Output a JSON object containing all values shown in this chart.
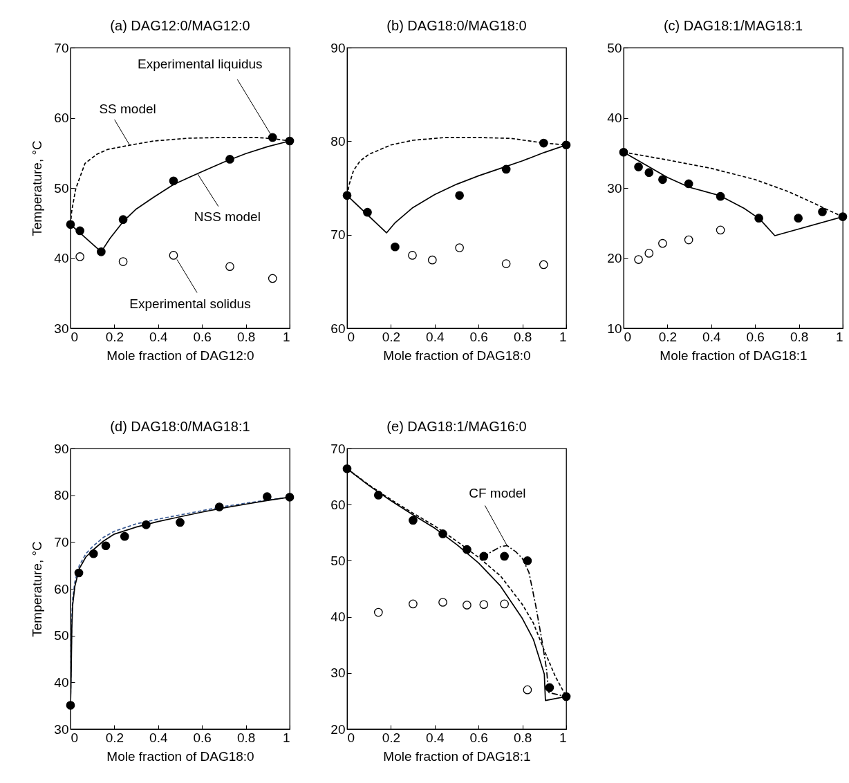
{
  "chart_data": [
    {
      "type": "line",
      "title": "(a) DAG12:0/MAG12:0",
      "xlabel": "Mole fraction of DAG12:0",
      "ylabel": "Temperature, °C",
      "xlim": [
        0,
        1
      ],
      "ylim": [
        30,
        70
      ],
      "xticks": [
        0,
        0.2,
        0.4,
        0.6,
        0.8,
        1
      ],
      "yticks": [
        30,
        40,
        50,
        60,
        70
      ],
      "series": [
        {
          "type": "line",
          "color": "#000000",
          "line_style": "dashed",
          "x": [
            0,
            0.005,
            0.01,
            0.024,
            0.066,
            0.12,
            0.17,
            0.27,
            0.38,
            0.54,
            0.7,
            0.85,
            0.93,
            1
          ],
          "values": [
            44.8,
            46.6,
            47.5,
            49.9,
            53.5,
            54.8,
            55.5,
            56.1,
            56.7,
            57.1,
            57.2,
            57.2,
            57.0,
            56.7
          ]
        },
        {
          "type": "line",
          "color": "#000000",
          "line_style": "solid",
          "x": [
            0,
            0.14,
            0.18,
            0.24,
            0.3,
            0.38,
            0.47,
            0.59,
            0.7,
            0.8,
            0.9,
            1
          ],
          "values": [
            44.8,
            40.9,
            42.8,
            45.2,
            47.0,
            48.7,
            50.5,
            52.2,
            53.7,
            54.9,
            55.9,
            56.7
          ]
        },
        {
          "type": "scatter",
          "color": "#ffffff",
          "marker": "circle",
          "x": [
            0.043,
            0.24,
            0.47,
            0.727,
            0.922
          ],
          "values": [
            40.2,
            39.5,
            40.4,
            38.8,
            37.1
          ]
        },
        {
          "type": "scatter",
          "color": "#000000",
          "marker": "circle",
          "x": [
            0,
            0.043,
            0.14,
            0.24,
            0.47,
            0.727,
            0.922,
            1
          ],
          "values": [
            44.8,
            43.9,
            40.9,
            45.5,
            51.0,
            54.1,
            57.2,
            56.7
          ]
        }
      ],
      "annotations": [
        {
          "text": "Experimental liquidus",
          "x": 0.922,
          "y": 57.2
        },
        {
          "text": "SS model",
          "x": 0.27,
          "y": 56.1
        },
        {
          "text": "NSS model",
          "x": 0.58,
          "y": 52.0
        },
        {
          "text": "Experimental solidus",
          "x": 0.47,
          "y": 40.4
        }
      ]
    },
    {
      "type": "line",
      "title": "(b) DAG18:0/MAG18:0",
      "xlabel": "Mole fraction of DAG18:0",
      "xlim": [
        0,
        1
      ],
      "ylim": [
        60,
        90
      ],
      "xticks": [
        0,
        0.2,
        0.4,
        0.6,
        0.8,
        1
      ],
      "yticks": [
        60,
        70,
        80,
        90
      ],
      "series": [
        {
          "type": "line",
          "color": "#000000",
          "line_style": "dashed",
          "x": [
            0,
            0.01,
            0.03,
            0.06,
            0.1,
            0.2,
            0.3,
            0.45,
            0.6,
            0.75,
            0.9,
            1
          ],
          "values": [
            74.2,
            75.4,
            76.9,
            77.9,
            78.6,
            79.6,
            80.1,
            80.4,
            80.4,
            80.3,
            79.8,
            79.6
          ]
        },
        {
          "type": "line",
          "color": "#000000",
          "line_style": "solid",
          "x": [
            0,
            0.18,
            0.22,
            0.3,
            0.4,
            0.5,
            0.6,
            0.7,
            0.8,
            0.9,
            1
          ],
          "values": [
            74.2,
            70.2,
            71.3,
            72.9,
            74.3,
            75.4,
            76.3,
            77.1,
            77.9,
            78.8,
            79.6
          ]
        },
        {
          "type": "scatter",
          "color": "#ffffff",
          "marker": "circle",
          "x": [
            0.298,
            0.389,
            0.513,
            0.726,
            0.897
          ],
          "values": [
            67.8,
            67.3,
            68.6,
            66.9,
            66.8
          ]
        },
        {
          "type": "scatter",
          "color": "#000000",
          "marker": "circle",
          "x": [
            0,
            0.093,
            0.219,
            0.513,
            0.726,
            0.897,
            1
          ],
          "values": [
            74.2,
            72.4,
            68.7,
            74.2,
            77.0,
            79.8,
            79.6
          ]
        }
      ]
    },
    {
      "type": "line",
      "title": "(c) DAG18:1/MAG18:1",
      "xlabel": "Mole fraction of DAG18:1",
      "xlim": [
        0,
        1
      ],
      "ylim": [
        10,
        50
      ],
      "xticks": [
        0,
        0.2,
        0.4,
        0.6,
        0.8,
        1
      ],
      "yticks": [
        10,
        20,
        30,
        40,
        50
      ],
      "series": [
        {
          "type": "line",
          "color": "#000000",
          "line_style": "dashed",
          "x": [
            0,
            0.2,
            0.4,
            0.6,
            0.75,
            0.85,
            0.93,
            1
          ],
          "values": [
            35.1,
            34.0,
            32.8,
            31.2,
            29.5,
            28.1,
            26.9,
            25.9
          ]
        },
        {
          "type": "line",
          "color": "#000000",
          "line_style": "solid",
          "x": [
            0,
            0.1,
            0.2,
            0.3,
            0.44,
            0.55,
            0.62,
            0.69,
            1
          ],
          "values": [
            35.1,
            33.3,
            31.5,
            30.1,
            28.9,
            27.1,
            25.6,
            23.2,
            25.9
          ]
        },
        {
          "type": "scatter",
          "color": "#ffffff",
          "marker": "circle",
          "x": [
            0.068,
            0.116,
            0.178,
            0.297,
            0.442
          ],
          "values": [
            19.8,
            20.7,
            22.1,
            22.6,
            24.0
          ]
        },
        {
          "type": "scatter",
          "color": "#000000",
          "marker": "circle",
          "x": [
            0,
            0.068,
            0.116,
            0.178,
            0.297,
            0.442,
            0.617,
            0.797,
            0.907,
            1
          ],
          "values": [
            35.1,
            33.0,
            32.2,
            31.2,
            30.6,
            28.8,
            25.7,
            25.7,
            26.6,
            25.9
          ]
        }
      ]
    },
    {
      "type": "line",
      "title": "(d) DAG18:0/MAG18:1",
      "xlabel": "Mole fraction of DAG18:0",
      "ylabel": "Temperature, °C",
      "xlim": [
        0,
        1
      ],
      "ylim": [
        30,
        90
      ],
      "xticks": [
        0,
        0.2,
        0.4,
        0.6,
        0.8,
        1
      ],
      "yticks": [
        30,
        40,
        50,
        60,
        70,
        80,
        90
      ],
      "series": [
        {
          "type": "line",
          "color": "#3a5a93",
          "line_style": "dashed",
          "x": [
            0,
            0.003,
            0.006,
            0.01,
            0.02,
            0.04,
            0.07,
            0.1,
            0.15,
            0.2,
            0.3,
            0.4,
            0.5,
            0.6,
            0.7,
            0.8,
            0.9,
            1
          ],
          "values": [
            35.1,
            45,
            54,
            58,
            61.5,
            65,
            67.5,
            69,
            71,
            72.3,
            73.9,
            74.9,
            75.8,
            76.7,
            77.6,
            78.3,
            79.0,
            79.6
          ]
        },
        {
          "type": "line",
          "color": "#000000",
          "line_style": "solid",
          "x": [
            0,
            0.003,
            0.006,
            0.01,
            0.02,
            0.04,
            0.07,
            0.1,
            0.15,
            0.2,
            0.3,
            0.4,
            0.5,
            0.6,
            0.7,
            0.8,
            0.9,
            1
          ],
          "values": [
            35.1,
            41.8,
            51.7,
            56.6,
            60.6,
            64.3,
            66.8,
            68.2,
            70.2,
            71.7,
            73.2,
            74.4,
            75.4,
            76.4,
            77.3,
            78.1,
            78.9,
            79.6
          ]
        },
        {
          "type": "scatter",
          "color": "#000000",
          "marker": "circle",
          "x": [
            0,
            0.038,
            0.105,
            0.161,
            0.247,
            0.345,
            0.5,
            0.679,
            0.897,
            1
          ],
          "values": [
            35.1,
            63.4,
            67.5,
            69.2,
            71.2,
            73.7,
            74.2,
            77.5,
            79.7,
            79.6
          ]
        }
      ]
    },
    {
      "type": "line",
      "title": "(e) DAG18:1/MAG16:0",
      "xlabel": "Mole fraction of DAG18:1",
      "xlim": [
        0,
        1
      ],
      "ylim": [
        20,
        70
      ],
      "xticks": [
        0,
        0.2,
        0.4,
        0.6,
        0.8,
        1
      ],
      "yticks": [
        20,
        30,
        40,
        50,
        60,
        70
      ],
      "series": [
        {
          "type": "line",
          "color": "#000000",
          "line_style": "dashed",
          "x": [
            0,
            0.1,
            0.2,
            0.3,
            0.4,
            0.5,
            0.6,
            0.7,
            0.8,
            0.85,
            0.9,
            0.95,
            1
          ],
          "values": [
            66.4,
            63.5,
            60.9,
            58.5,
            56.2,
            53.5,
            50.6,
            47.3,
            42.2,
            38.9,
            34.0,
            29.4,
            25.8
          ]
        },
        {
          "type": "line",
          "color": "#000000",
          "line_style": "solid",
          "x": [
            0,
            0.1,
            0.2,
            0.3,
            0.4,
            0.5,
            0.6,
            0.7,
            0.8,
            0.85,
            0.9,
            0.905,
            1
          ],
          "values": [
            66.4,
            63.4,
            60.7,
            58.2,
            55.8,
            52.9,
            49.6,
            45.5,
            39.7,
            36.0,
            29.8,
            25.1,
            25.8
          ]
        },
        {
          "type": "line",
          "color": "#000000",
          "line_style": "dashdot",
          "x": [
            0.62,
            0.65,
            0.7,
            0.73,
            0.77,
            0.8,
            0.83,
            0.86,
            0.89,
            0.91,
            0.92,
            1
          ],
          "values": [
            50.5,
            51.4,
            52.5,
            52.7,
            51.6,
            50.4,
            47.9,
            42.2,
            35.6,
            30.7,
            26.5,
            25.8
          ]
        },
        {
          "type": "scatter",
          "color": "#ffffff",
          "marker": "circle",
          "x": [
            0.143,
            0.301,
            0.437,
            0.547,
            0.624,
            0.718,
            0.823
          ],
          "values": [
            40.8,
            42.3,
            42.6,
            42.1,
            42.2,
            42.3,
            27.0
          ]
        },
        {
          "type": "scatter",
          "color": "#000000",
          "marker": "circle",
          "x": [
            0,
            0.143,
            0.301,
            0.437,
            0.547,
            0.624,
            0.718,
            0.823,
            0.924,
            1
          ],
          "values": [
            66.4,
            61.7,
            57.2,
            54.8,
            52.0,
            50.8,
            50.8,
            50.0,
            27.4,
            25.8
          ]
        }
      ],
      "annotations": [
        {
          "text": "CF model",
          "x": 0.73,
          "y": 52.7
        }
      ]
    }
  ]
}
